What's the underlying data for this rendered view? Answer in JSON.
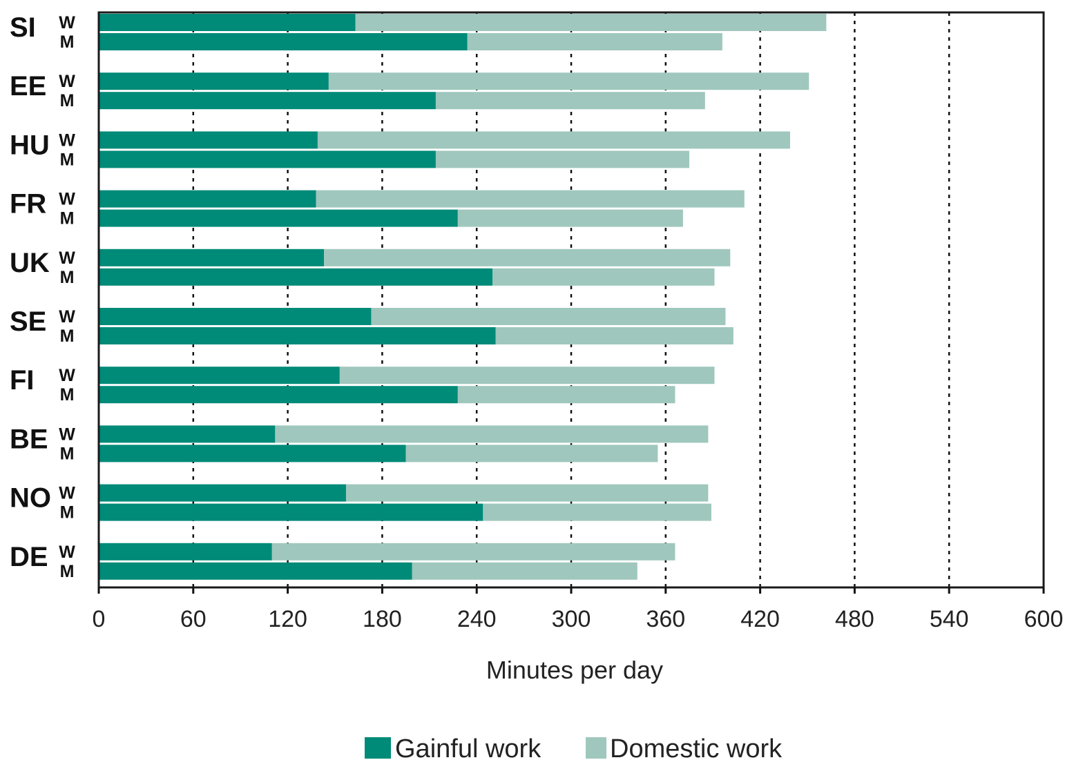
{
  "chart_data": {
    "type": "bar",
    "orientation": "horizontal",
    "stacked": true,
    "xlabel": "Minutes per day",
    "xlim": [
      0,
      600
    ],
    "x_ticks": [
      "0",
      "60",
      "120",
      "180",
      "240",
      "300",
      "360",
      "420",
      "480",
      "540",
      "600"
    ],
    "grid": "vertical dotted",
    "legend_position": "bottom-center",
    "colors": {
      "gainful": "#008a78",
      "domestic": "#9fc7bd"
    },
    "series": [
      {
        "name": "Gainful work",
        "key": "gainful"
      },
      {
        "name": "Domestic work",
        "key": "domestic"
      }
    ],
    "countries": [
      {
        "label": "SI",
        "groups": [
          {
            "label": "W",
            "gainful": 163,
            "domestic": 299
          },
          {
            "label": "M",
            "gainful": 234,
            "domestic": 162
          }
        ]
      },
      {
        "label": "EE",
        "groups": [
          {
            "label": "W",
            "gainful": 146,
            "domestic": 305
          },
          {
            "label": "M",
            "gainful": 214,
            "domestic": 171
          }
        ]
      },
      {
        "label": "HU",
        "groups": [
          {
            "label": "W",
            "gainful": 139,
            "domestic": 300
          },
          {
            "label": "M",
            "gainful": 214,
            "domestic": 161
          }
        ]
      },
      {
        "label": "FR",
        "groups": [
          {
            "label": "W",
            "gainful": 138,
            "domestic": 272
          },
          {
            "label": "M",
            "gainful": 228,
            "domestic": 143
          }
        ]
      },
      {
        "label": "UK",
        "groups": [
          {
            "label": "W",
            "gainful": 143,
            "domestic": 258
          },
          {
            "label": "M",
            "gainful": 250,
            "domestic": 141
          }
        ]
      },
      {
        "label": "SE",
        "groups": [
          {
            "label": "W",
            "gainful": 173,
            "domestic": 225
          },
          {
            "label": "M",
            "gainful": 252,
            "domestic": 151
          }
        ]
      },
      {
        "label": "FI",
        "groups": [
          {
            "label": "W",
            "gainful": 153,
            "domestic": 238
          },
          {
            "label": "M",
            "gainful": 228,
            "domestic": 138
          }
        ]
      },
      {
        "label": "BE",
        "groups": [
          {
            "label": "W",
            "gainful": 112,
            "domestic": 275
          },
          {
            "label": "M",
            "gainful": 195,
            "domestic": 160
          }
        ]
      },
      {
        "label": "NO",
        "groups": [
          {
            "label": "W",
            "gainful": 157,
            "domestic": 230
          },
          {
            "label": "M",
            "gainful": 244,
            "domestic": 145
          }
        ]
      },
      {
        "label": "DE",
        "groups": [
          {
            "label": "W",
            "gainful": 110,
            "domestic": 256
          },
          {
            "label": "M",
            "gainful": 199,
            "domestic": 143
          }
        ]
      }
    ]
  }
}
